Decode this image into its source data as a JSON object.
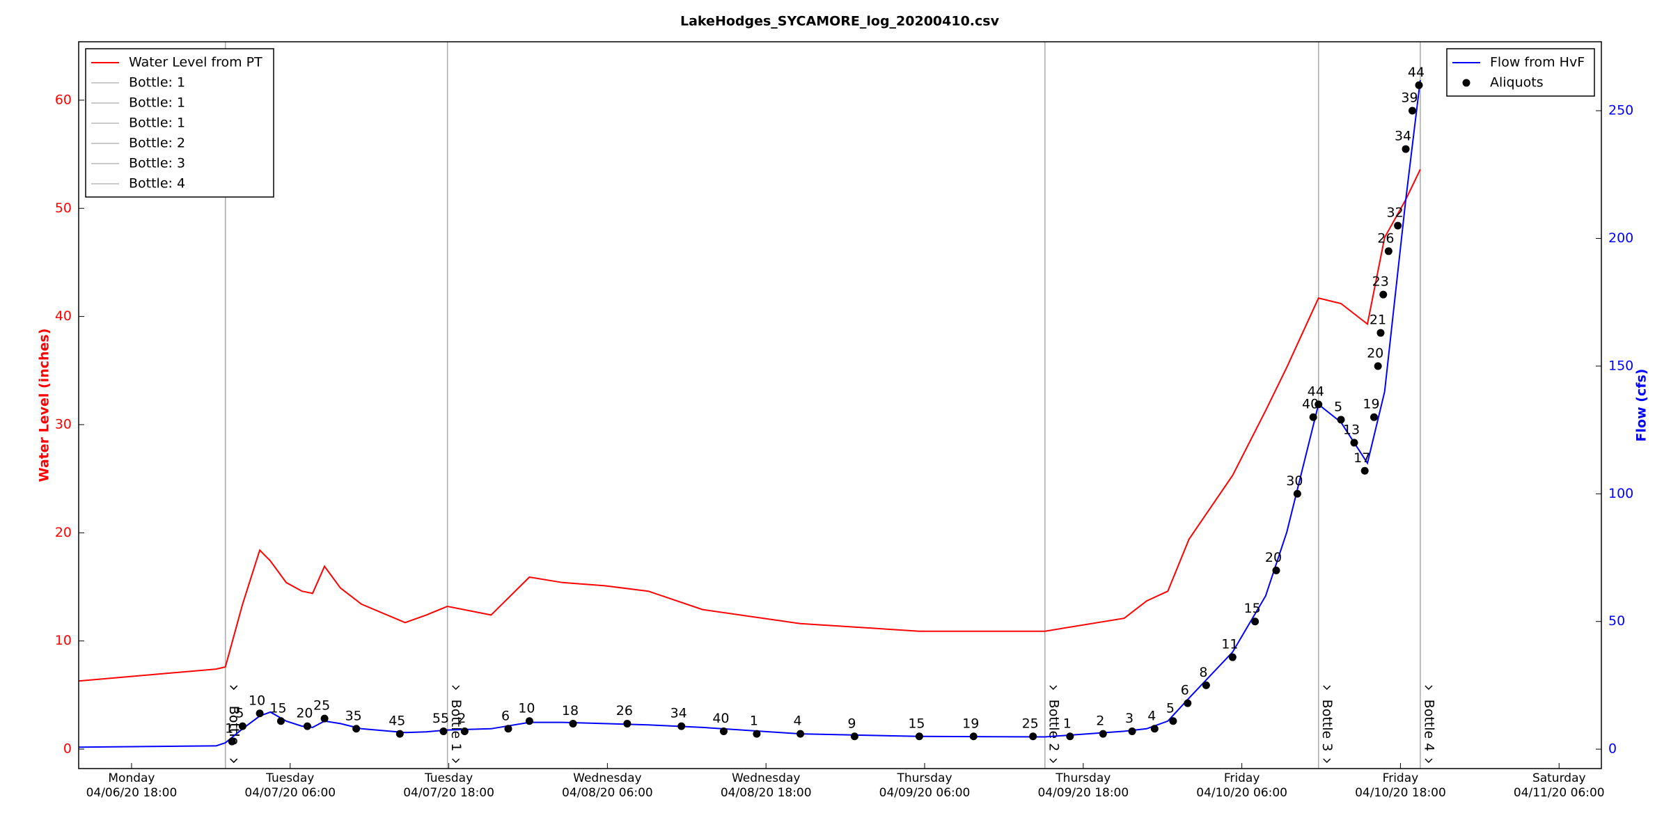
{
  "chart_data": {
    "type": "line",
    "title": "LakeHodges_SYCAMORE_log_20200410.csv",
    "ylabel": "Water Level (inches)",
    "y2label": "Flow (cfs)",
    "xlim": [
      "2020-04-06T14:00",
      "2020-04-11T09:12"
    ],
    "xticks": [
      {
        "value": "2020-04-06T18:00",
        "label": "Monday\n04/06/20 18:00"
      },
      {
        "value": "2020-04-07T06:00",
        "label": "Tuesday\n04/07/20 06:00"
      },
      {
        "value": "2020-04-07T18:00",
        "label": "Tuesday\n04/07/20 18:00"
      },
      {
        "value": "2020-04-08T06:00",
        "label": "Wednesday\n04/08/20 06:00"
      },
      {
        "value": "2020-04-08T18:00",
        "label": "Wednesday\n04/08/20 18:00"
      },
      {
        "value": "2020-04-09T06:00",
        "label": "Thursday\n04/09/20 06:00"
      },
      {
        "value": "2020-04-09T18:00",
        "label": "Thursday\n04/09/20 18:00"
      },
      {
        "value": "2020-04-10T06:00",
        "label": "Friday\n04/10/20 06:00"
      },
      {
        "value": "2020-04-10T18:00",
        "label": "Friday\n04/10/20 18:00"
      },
      {
        "value": "2020-04-11T06:00",
        "label": "Saturday\n04/11/20 06:00"
      }
    ],
    "ylim": [
      -1.8,
      65.4
    ],
    "yticks": [
      0,
      10,
      20,
      30,
      40,
      50,
      60
    ],
    "y2lim": [
      -7.6,
      277
    ],
    "y2ticks": [
      0,
      50,
      100,
      150,
      200,
      250
    ],
    "legend_left": "upper left",
    "legend_right": "upper right",
    "x": [
      "2020-04-06T14:00",
      "2020-04-07T00:24",
      "2020-04-07T01:06",
      "2020-04-07T02:24",
      "2020-04-07T03:42",
      "2020-04-07T04:30",
      "2020-04-07T05:42",
      "2020-04-07T06:54",
      "2020-04-07T07:42",
      "2020-04-07T08:36",
      "2020-04-07T09:48",
      "2020-04-07T11:24",
      "2020-04-07T14:42",
      "2020-04-07T16:18",
      "2020-04-07T17:54",
      "2020-04-07T21:12",
      "2020-04-08T00:06",
      "2020-04-08T02:36",
      "2020-04-08T05:48",
      "2020-04-08T09:06",
      "2020-04-08T13:12",
      "2020-04-08T20:36",
      "2020-04-09T05:36",
      "2020-04-09T15:06",
      "2020-04-09T21:06",
      "2020-04-09T22:48",
      "2020-04-10T00:24",
      "2020-04-10T02:00",
      "2020-04-10T05:18",
      "2020-04-10T07:48",
      "2020-04-10T09:24",
      "2020-04-10T11:48",
      "2020-04-10T13:30",
      "2020-04-10T15:30",
      "2020-04-10T16:48",
      "2020-04-10T18:24",
      "2020-04-10T19:30"
    ],
    "series": [
      {
        "name": "Water Level from PT",
        "color": "#ff0000",
        "values": [
          6.3,
          7.4,
          7.6,
          13.4,
          18.4,
          17.4,
          15.4,
          14.6,
          14.4,
          16.9,
          14.9,
          13.4,
          11.7,
          12.4,
          13.2,
          12.4,
          15.9,
          15.4,
          15.1,
          14.6,
          12.9,
          11.6,
          10.9,
          10.9,
          12.1,
          13.7,
          14.6,
          19.4,
          25.3,
          31.3,
          35.3,
          41.7,
          41.2,
          39.3,
          47.3,
          50.8,
          53.6
        ]
      },
      {
        "name": "Flow from HvF",
        "color": "#0000ff",
        "axis": "y2",
        "values": [
          0.8,
          1.3,
          2.5,
          8,
          13,
          14.5,
          11,
          9,
          8.5,
          11,
          10,
          8,
          6.5,
          6.8,
          7.5,
          8,
          10.5,
          10.5,
          10,
          9.5,
          8.5,
          6,
          5,
          4.8,
          7,
          8,
          11,
          20,
          38,
          60,
          85,
          135,
          128,
          112,
          140,
          215,
          262
        ]
      }
    ],
    "aliquots": {
      "name": "Aliquots",
      "color": "#000000",
      "axis": "y2",
      "x": [
        "2020-04-07T01:36",
        "2020-04-07T02:24",
        "2020-04-07T03:42",
        "2020-04-07T05:18",
        "2020-04-07T07:18",
        "2020-04-07T08:36",
        "2020-04-07T11:00",
        "2020-04-07T14:18",
        "2020-04-07T17:36",
        "2020-04-07T19:12",
        "2020-04-07T22:30",
        "2020-04-08T00:06",
        "2020-04-08T03:24",
        "2020-04-08T07:30",
        "2020-04-08T11:36",
        "2020-04-08T14:48",
        "2020-04-08T17:18",
        "2020-04-08T20:36",
        "2020-04-09T00:42",
        "2020-04-09T05:36",
        "2020-04-09T09:42",
        "2020-04-09T14:12",
        "2020-04-09T17:00",
        "2020-04-09T19:30",
        "2020-04-09T21:42",
        "2020-04-09T23:24",
        "2020-04-10T00:48",
        "2020-04-10T01:54",
        "2020-04-10T03:18",
        "2020-04-10T05:18",
        "2020-04-10T07:00",
        "2020-04-10T08:36",
        "2020-04-10T10:12",
        "2020-04-10T11:24",
        "2020-04-10T11:48",
        "2020-04-10T13:30",
        "2020-04-10T14:30",
        "2020-04-10T15:18",
        "2020-04-10T16:00",
        "2020-04-10T16:18",
        "2020-04-10T16:30",
        "2020-04-10T16:42",
        "2020-04-10T17:06",
        "2020-04-10T17:48",
        "2020-04-10T18:24",
        "2020-04-10T18:54",
        "2020-04-10T19:24"
      ],
      "values": [
        3,
        9,
        14,
        11,
        9,
        12,
        8,
        6,
        7,
        7,
        8,
        11,
        10,
        10,
        9,
        7,
        6,
        6,
        5,
        5,
        5,
        5,
        5,
        6,
        7,
        8,
        11,
        18,
        25,
        36,
        50,
        70,
        100,
        130,
        135,
        129,
        120,
        109,
        130,
        150,
        163,
        178,
        195,
        205,
        235,
        250,
        260
      ],
      "labels": [
        "1",
        "5",
        "10",
        "15",
        "20",
        "25",
        "35",
        "45",
        "55",
        "2",
        "6",
        "10",
        "18",
        "26",
        "34",
        "40",
        "1",
        "4",
        "9",
        "15",
        "19",
        "25",
        "1",
        "2",
        "3",
        "4",
        "5",
        "6",
        "8",
        "11",
        "15",
        "20",
        "30",
        "40",
        "44",
        "5",
        "13",
        "17",
        "19",
        "20",
        "21",
        "23",
        "26",
        "32",
        "34",
        "39",
        "44"
      ]
    },
    "bottles": [
      {
        "x": "2020-04-07T01:06",
        "label": "Bottle: 1",
        "annotation": "Bottle"
      },
      {
        "x": "2020-04-07T17:54",
        "label": "Bottle: 1",
        "annotation": "Bottle 1"
      },
      {
        "x": "2020-04-07T01:06",
        "label": "Bottle: 1",
        "annotation": "Bottle"
      },
      {
        "x": "2020-04-09T15:06",
        "label": "Bottle: 2",
        "annotation": "Bottle 2"
      },
      {
        "x": "2020-04-10T11:48",
        "label": "Bottle: 3",
        "annotation": "Bottle 3"
      },
      {
        "x": "2020-04-10T19:30",
        "label": "Bottle: 4",
        "annotation": "Bottle 4"
      }
    ]
  }
}
